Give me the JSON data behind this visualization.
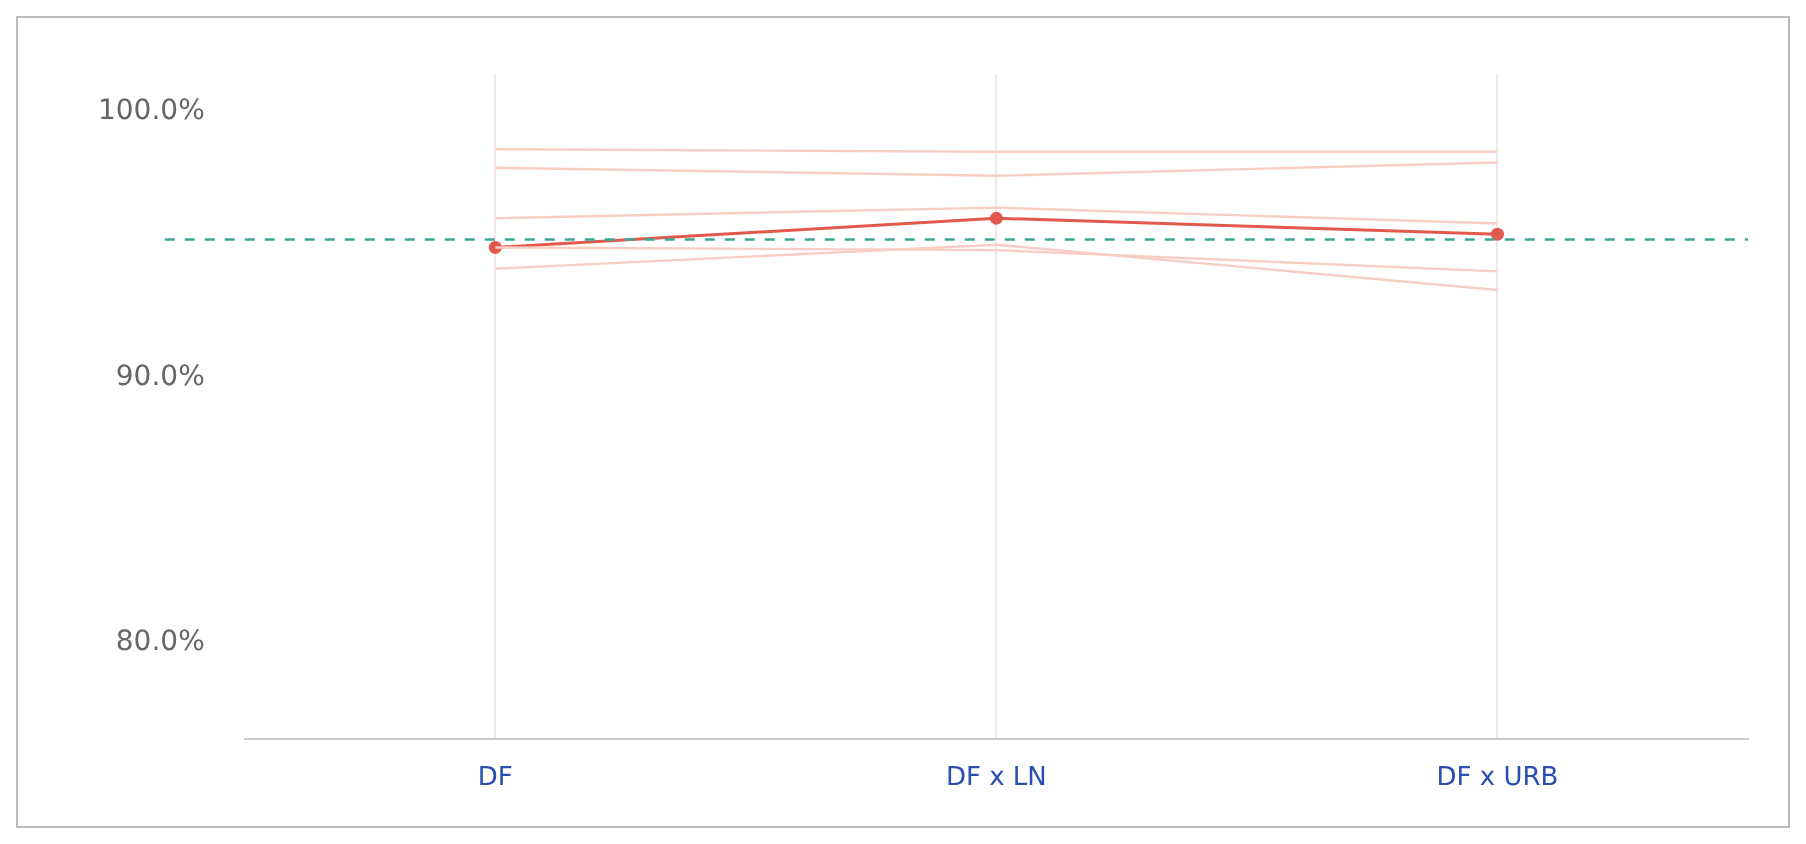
{
  "chart_data": {
    "type": "line",
    "categories": [
      "DF",
      "DF x LN",
      "DF x URB"
    ],
    "series": [
      {
        "color": "#f8cdc6",
        "values": [
          98.6,
          98.5,
          98.5
        ],
        "marker": "none"
      },
      {
        "color": "#f8cdc6",
        "values": [
          97.9,
          97.6,
          98.1
        ],
        "marker": "none"
      },
      {
        "color": "#f8cdc6",
        "values": [
          96.0,
          96.4,
          95.8
        ],
        "marker": "none"
      },
      {
        "color": "#f8cdc6",
        "values": [
          94.9,
          94.8,
          94.0
        ],
        "marker": "none"
      },
      {
        "color": "#f8cdc6",
        "values": [
          94.1,
          95.0,
          93.3
        ],
        "marker": "none"
      },
      {
        "color": "#e0594c",
        "values": [
          94.9,
          96.0,
          95.4
        ],
        "marker": "circle"
      }
    ],
    "ylim": [
      76.4,
      101.4
    ],
    "yticks": [
      {
        "value": 80,
        "label": "80.0%"
      },
      {
        "value": 90,
        "label": "90.0%"
      },
      {
        "value": 100,
        "label": "100.0%"
      }
    ],
    "ref_lines": [
      {
        "axis": "y",
        "value": 95.2,
        "color": "#3aa897",
        "line_style": "dashed"
      }
    ],
    "grid": "x",
    "legend": false,
    "line_style": "solid"
  }
}
